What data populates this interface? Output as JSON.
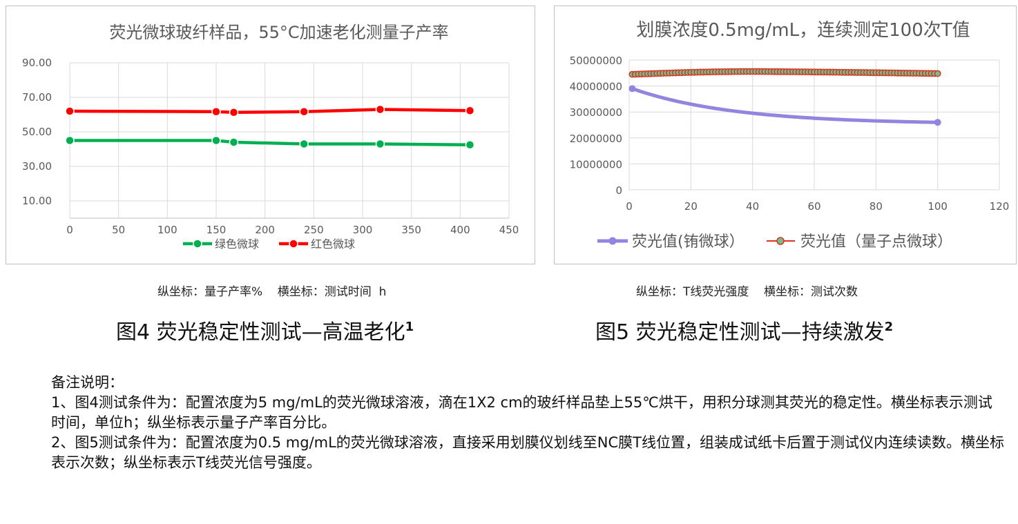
{
  "chart_data": [
    {
      "type": "line",
      "title": "荧光微球玻纤样品，55°C加速老化测量子产率",
      "x_ticks": [
        "0",
        "50",
        "100",
        "150",
        "200",
        "250",
        "300",
        "350",
        "400",
        "450"
      ],
      "y_ticks": [
        "10.00",
        "30.00",
        "50.00",
        "70.00",
        "90.00"
      ],
      "xlim": [
        0,
        450
      ],
      "ylim": [
        0,
        90
      ],
      "grid": true,
      "legend_position": "bottom",
      "series": [
        {
          "name": "绿色微球",
          "color": "#00b050",
          "x": [
            0,
            150,
            168,
            240,
            318,
            410
          ],
          "y": [
            45,
            45,
            44,
            43,
            43,
            42.5
          ]
        },
        {
          "name": "红色微球",
          "color": "#ff0000",
          "x": [
            0,
            150,
            168,
            240,
            318,
            410
          ],
          "y": [
            62,
            61.7,
            61.3,
            61.7,
            63,
            62.3
          ]
        }
      ]
    },
    {
      "type": "line",
      "title": "划膜浓度0.5mg/mL，连续测定100次T值",
      "x_ticks": [
        "0",
        "20",
        "40",
        "60",
        "80",
        "100",
        "120"
      ],
      "y_ticks": [
        "0",
        "10000000",
        "20000000",
        "30000000",
        "40000000",
        "50000000"
      ],
      "xlim": [
        0,
        120
      ],
      "ylim": [
        0,
        50000000
      ],
      "grid": true,
      "legend_position": "bottom",
      "series": [
        {
          "name": "荧光值(铕微球）",
          "color": "#9384e0",
          "start_x": 1,
          "end_x": 100,
          "start_y": 39000000,
          "end_y": 26000000,
          "shape": "decaying"
        },
        {
          "name": "荧光值（量子点微球）",
          "color": "#e0301e",
          "marker_fill": "#6fbf8f",
          "start_x": 1,
          "end_x": 100,
          "start_y": 44500000,
          "peak_y": 45600000,
          "end_y": 44800000,
          "shape": "plateau"
        }
      ]
    }
  ],
  "captions": {
    "fig4_axes": "纵坐标：量子产率%    横坐标：测试时间  h",
    "fig5_axes": "纵坐标：T线荧光强度    横坐标：测试次数",
    "fig4_title": "图4  荧光稳定性测试—高温老化",
    "fig4_sup": "1",
    "fig5_title": "图5  荧光稳定性测试—持续激发",
    "fig5_sup": "2"
  },
  "notes": {
    "heading": "备注说明：",
    "note1": "1、图4测试条件为：配置浓度为5 mg/mL的荧光微球溶液，滴在1X2 cm的玻纤样品垫上55℃烘干，用积分球测其荧光的稳定性。横坐标表示测试时间，单位h；纵坐标表示量子产率百分比。",
    "note2": "2、图5测试条件为：配置浓度为0.5 mg/mL的荧光微球溶液，直接采用划膜仪划线至NC膜T线位置，组装成试纸卡后置于测试仪内连续读数。横坐标表示次数；纵坐标表示T线荧光信号强度。"
  }
}
